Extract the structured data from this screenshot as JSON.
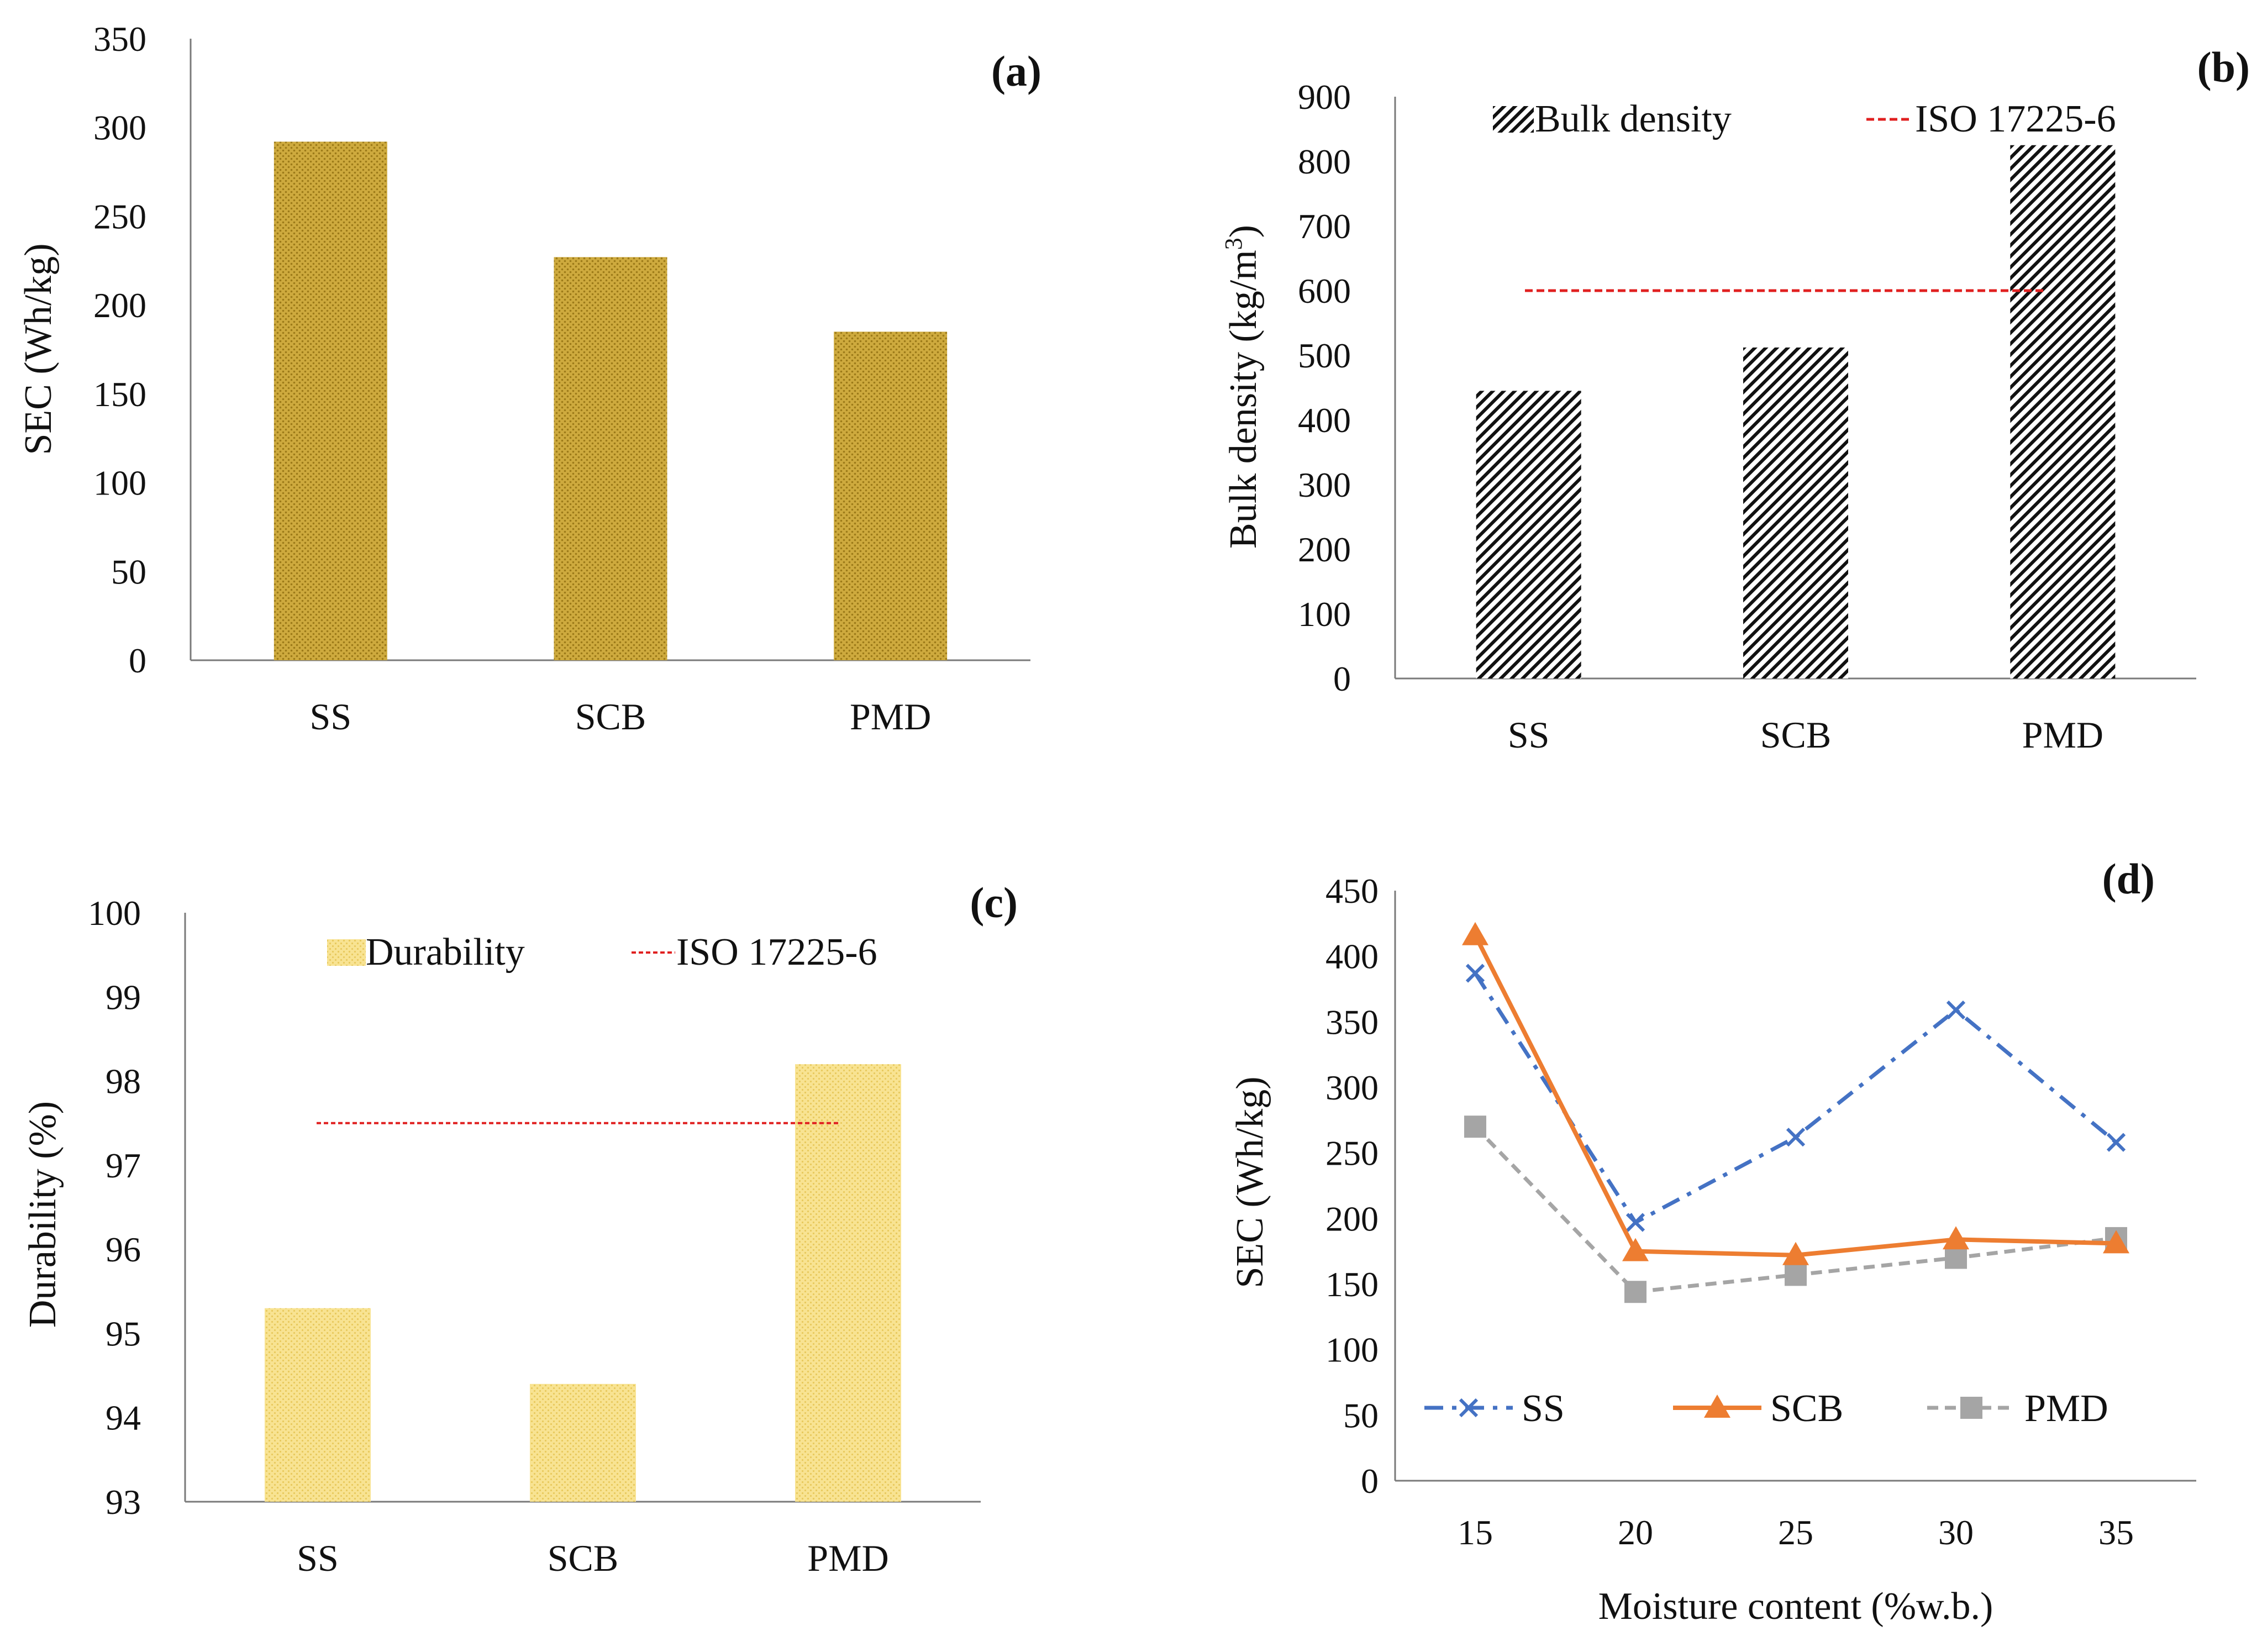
{
  "chart_data": [
    {
      "panel": "(a)",
      "type": "bar",
      "categories": [
        "SS",
        "SCB",
        "PMD"
      ],
      "values": [
        292,
        227,
        185
      ],
      "ylabel": "SEC (Wh/kg)",
      "ylim": [
        0,
        350
      ],
      "yticks": [
        "0",
        "50",
        "100",
        "150",
        "200",
        "250",
        "300",
        "350"
      ],
      "bar_color": "#c9a02c"
    },
    {
      "panel": "(b)",
      "type": "bar",
      "categories": [
        "SS",
        "SCB",
        "PMD"
      ],
      "values": [
        445,
        512,
        825
      ],
      "ylabel_main": "Bulk density  (kg/m",
      "ylabel_sup": "3",
      "ylabel_close": ")",
      "ylim": [
        0,
        900
      ],
      "yticks": [
        "0",
        "100",
        "200",
        "300",
        "400",
        "500",
        "600",
        "700",
        "800",
        "900"
      ],
      "legend": {
        "bar": "Bulk density",
        "line": "ISO 17225-6"
      },
      "reference_line": {
        "value": 600,
        "color": "#e02020"
      }
    },
    {
      "panel": "(c)",
      "type": "bar",
      "categories": [
        "SS",
        "SCB",
        "PMD"
      ],
      "values": [
        95.3,
        94.4,
        98.2
      ],
      "ylabel": "Durability (%)",
      "ylim": [
        93,
        100
      ],
      "yticks": [
        "93",
        "94",
        "95",
        "96",
        "97",
        "98",
        "99",
        "100"
      ],
      "legend": {
        "bar": "Durability",
        "line": "ISO 17225-6"
      },
      "reference_line": {
        "value": 97.5,
        "color": "#e02020"
      },
      "bar_color": "#f7e08a"
    },
    {
      "panel": "(d)",
      "type": "line",
      "x": [
        15,
        20,
        25,
        30,
        35
      ],
      "xticks": [
        "15",
        "20",
        "25",
        "30",
        "35"
      ],
      "series": [
        {
          "name": "SS",
          "values": [
            387,
            197,
            262,
            359,
            258
          ],
          "color": "#4472c4",
          "marker": "x"
        },
        {
          "name": "SCB",
          "values": [
            416,
            175,
            172,
            184,
            181
          ],
          "color": "#ed7d31",
          "marker": "triangle"
        },
        {
          "name": "PMD",
          "values": [
            270,
            144,
            157,
            170,
            185
          ],
          "color": "#a5a5a5",
          "marker": "square"
        }
      ],
      "xlabel": "Moisture content (%w.b.)",
      "ylabel": "SEC (Wh/kg)",
      "ylim": [
        0,
        450
      ],
      "yticks": [
        "0",
        "50",
        "100",
        "150",
        "200",
        "250",
        "300",
        "350",
        "400",
        "450"
      ]
    }
  ]
}
